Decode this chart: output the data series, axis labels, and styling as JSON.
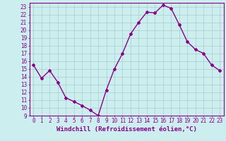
{
  "x": [
    0,
    1,
    2,
    3,
    4,
    5,
    6,
    7,
    8,
    9,
    10,
    11,
    12,
    13,
    14,
    15,
    16,
    17,
    18,
    19,
    20,
    21,
    22,
    23
  ],
  "y": [
    15.5,
    13.8,
    14.8,
    13.3,
    11.3,
    10.8,
    10.3,
    9.7,
    9.0,
    12.3,
    15.0,
    17.0,
    19.5,
    21.0,
    22.3,
    22.2,
    23.2,
    22.8,
    20.7,
    18.5,
    17.5,
    17.0,
    15.5,
    14.8
  ],
  "line_color": "#880088",
  "marker": "D",
  "marker_size": 2.0,
  "line_width": 1.0,
  "bg_color": "#cceeee",
  "grid_color": "#aacccc",
  "xlabel": "Windchill (Refroidissement éolien,°C)",
  "xlabel_fontsize": 6.5,
  "tick_fontsize": 5.5,
  "xlim": [
    -0.5,
    23.5
  ],
  "ylim": [
    9,
    23.5
  ],
  "yticks": [
    9,
    10,
    11,
    12,
    13,
    14,
    15,
    16,
    17,
    18,
    19,
    20,
    21,
    22,
    23
  ],
  "xticks": [
    0,
    1,
    2,
    3,
    4,
    5,
    6,
    7,
    8,
    9,
    10,
    11,
    12,
    13,
    14,
    15,
    16,
    17,
    18,
    19,
    20,
    21,
    22,
    23
  ],
  "spine_color": "#880088",
  "label_color": "#880088"
}
